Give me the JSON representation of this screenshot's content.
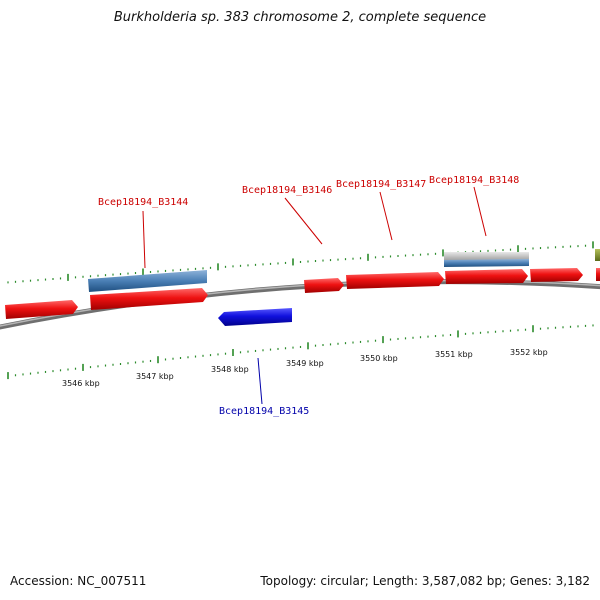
{
  "title": "Burkholderia sp. 383 chromosome 2, complete sequence",
  "footer": {
    "accession": "Accession: NC_007511",
    "stats": "Topology: circular; Length: 3,587,082 bp; Genes: 3,182"
  },
  "colors": {
    "forward_gene": "#ee1111",
    "reverse_gene": "#1111dd",
    "cds_feature": "#4a7fb5",
    "misc_feature": "#aaaaaa",
    "other_feature": "#7a8a2a",
    "tick": "#2a8a2a",
    "backbone": "#8a8a8a",
    "forward_label": "#cc0000",
    "reverse_label": "#0000aa"
  },
  "genes": [
    {
      "name": "Bcep18194_B3144",
      "strand": "forward",
      "labeled": true
    },
    {
      "name": "Bcep18194_B3145",
      "strand": "reverse",
      "labeled": true
    },
    {
      "name": "Bcep18194_B3146",
      "strand": "forward",
      "labeled": true
    },
    {
      "name": "Bcep18194_B3147",
      "strand": "forward",
      "labeled": true
    },
    {
      "name": "Bcep18194_B3148",
      "strand": "forward",
      "labeled": true
    }
  ],
  "scale_labels": [
    "3546 kbp",
    "3547 kbp",
    "3548 kbp",
    "3549 kbp",
    "3550 kbp",
    "3551 kbp",
    "3552 kbp"
  ]
}
